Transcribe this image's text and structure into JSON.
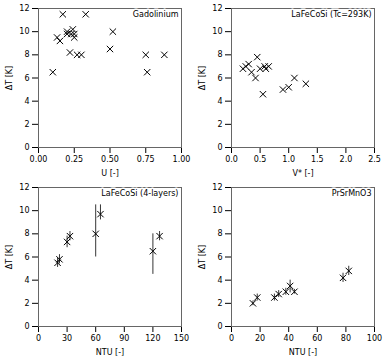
{
  "chart_data": [
    {
      "type": "scatter",
      "title": "Gadolinium",
      "xlabel": "U [-]",
      "ylabel": "ΔT [K]",
      "xlim": [
        0.0,
        1.0
      ],
      "ylim": [
        0,
        12
      ],
      "xticks": [
        {
          "value": 0.0,
          "label": "0.00"
        },
        {
          "value": 0.25,
          "label": "0.25"
        },
        {
          "value": 0.5,
          "label": "0.50"
        },
        {
          "value": 0.75,
          "label": "0.75"
        },
        {
          "value": 1.0,
          "label": "1.00"
        }
      ],
      "yticks": [
        0,
        2,
        4,
        6,
        8,
        10,
        12
      ],
      "marker": "x",
      "color": "#000000",
      "x": [
        0.1,
        0.13,
        0.15,
        0.17,
        0.2,
        0.2,
        0.22,
        0.23,
        0.24,
        0.25,
        0.25,
        0.27,
        0.3,
        0.33,
        0.5,
        0.52,
        0.75,
        0.76,
        0.88
      ],
      "y": [
        6.5,
        9.5,
        9.2,
        11.5,
        9.8,
        10.0,
        8.2,
        9.8,
        10.2,
        9.5,
        9.8,
        8.0,
        8.0,
        11.5,
        8.5,
        10.0,
        8.0,
        6.5,
        8.0
      ]
    },
    {
      "type": "scatter",
      "title": "LaFeCoSi (Tc=293K)",
      "xlabel": "V* [-]",
      "ylabel": "ΔT [K]",
      "xlim": [
        0.0,
        2.5
      ],
      "ylim": [
        0,
        12
      ],
      "xticks": [
        {
          "value": 0.0,
          "label": "0.0"
        },
        0.5,
        {
          "value": 1.0,
          "label": "1.0"
        },
        1.5,
        {
          "value": 2.0,
          "label": "2.0"
        },
        2.5
      ],
      "yticks": [
        0,
        2,
        4,
        6,
        8,
        10,
        12
      ],
      "marker": "x",
      "color": "#000000",
      "x": [
        0.2,
        0.25,
        0.3,
        0.35,
        0.42,
        0.45,
        0.5,
        0.55,
        0.58,
        0.6,
        0.65,
        0.9,
        1.0,
        1.1,
        1.3
      ],
      "y": [
        6.8,
        7.0,
        7.2,
        6.5,
        6.0,
        7.8,
        6.8,
        4.6,
        7.0,
        6.8,
        7.0,
        5.0,
        5.2,
        6.0,
        5.5
      ]
    },
    {
      "type": "errorbar",
      "title": "LaFeCoSi (4-layers)",
      "xlabel": "NTU [-]",
      "ylabel": "ΔT [K]",
      "xlim": [
        0,
        150
      ],
      "ylim": [
        0,
        12
      ],
      "xticks": [
        0,
        30,
        60,
        90,
        120,
        150
      ],
      "yticks": [
        0,
        2,
        4,
        6,
        8,
        10,
        12
      ],
      "marker": "x",
      "color": "#000000",
      "x": [
        20,
        22,
        30,
        33,
        60,
        65,
        120,
        127
      ],
      "y": [
        5.5,
        5.8,
        7.3,
        7.8,
        8.0,
        9.7,
        6.5,
        7.8
      ],
      "yerr_lower": [
        0.4,
        0.4,
        0.5,
        0.4,
        2.0,
        0.5,
        2.0,
        0.4
      ],
      "yerr_upper": [
        0.4,
        0.4,
        0.5,
        0.4,
        2.5,
        0.8,
        1.5,
        0.4
      ]
    },
    {
      "type": "errorbar",
      "title": "PrSrMnO3",
      "xlabel": "NTU [-]",
      "ylabel": "ΔT [K]",
      "xlim": [
        0,
        100
      ],
      "ylim": [
        0,
        12
      ],
      "xticks": [
        0,
        20,
        40,
        60,
        80,
        100
      ],
      "yticks": [
        0,
        2,
        4,
        6,
        8,
        10,
        12
      ],
      "marker": "x",
      "color": "#000000",
      "x": [
        15,
        18,
        30,
        33,
        38,
        41,
        44,
        78,
        82
      ],
      "y": [
        2.0,
        2.5,
        2.5,
        2.8,
        3.0,
        3.5,
        3.0,
        4.2,
        4.8
      ],
      "yerr_lower": [
        0.2,
        0.3,
        0.3,
        0.3,
        0.3,
        0.6,
        0.2,
        0.4,
        0.4
      ],
      "yerr_upper": [
        0.2,
        0.3,
        0.3,
        0.3,
        0.3,
        0.5,
        0.2,
        0.4,
        0.4
      ]
    }
  ]
}
